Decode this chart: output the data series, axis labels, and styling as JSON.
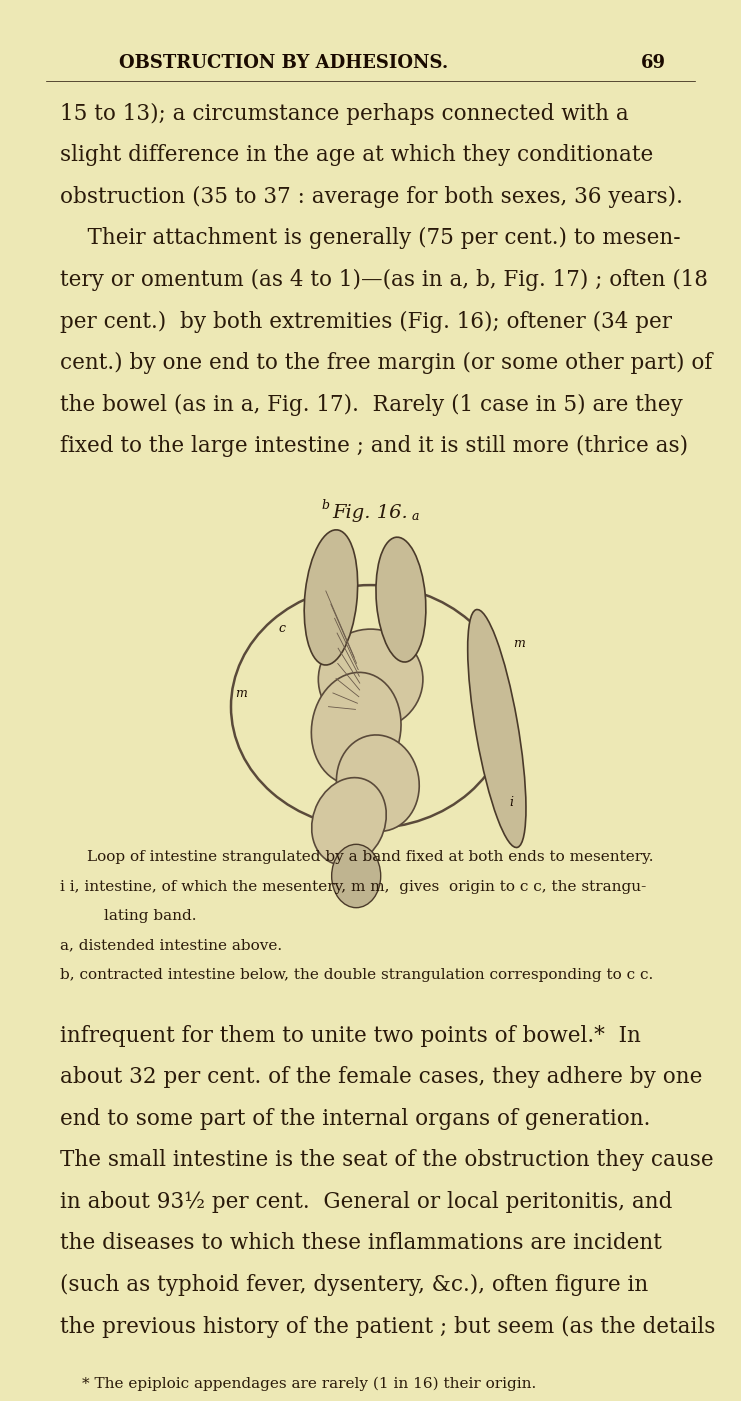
{
  "background_color": "#ede8b5",
  "header_text": "OBSTRUCTION BY ADHESIONS.",
  "page_number": "69",
  "fig_caption": "Fig. 16.",
  "caption_line1": "Loop of intestine strangulated by a band fixed at both ends to mesentery.",
  "caption_line2": "i i, intestine, of which the mesentery, m m,  gives  origin to c c, the strangu-",
  "caption_line3": "lating band.",
  "caption_line4": "a, distended intestine above.",
  "caption_line5": "b, contracted intestine below, the double strangulation corresponding to c c.",
  "footnote": "* The epiploic appendages are rarely (1 in 16) their origin.",
  "text_color": "#2a1a0a",
  "header_color": "#1a0a00",
  "font_size_header": 13,
  "font_size_body": 15.5,
  "font_size_caption_title": 13,
  "font_size_caption_body": 11,
  "font_size_footnote": 11,
  "body1_lines": [
    "15 to 13); a circumstance perhaps connected with a",
    "slight difference in the age at which they conditionate",
    "obstruction (35 to 37 : average for both sexes, 36 years).",
    "    Their attachment is generally (75 per cent.) to mesen-",
    "tery or omentum (as 4 to 1)—(as in a, b, Fig. 17) ; often (18",
    "per cent.)  by both extremities (Fig. 16); oftener (34 per",
    "cent.) by one end to the free margin (or some other part) of",
    "the bowel (as in a, Fig. 17).  Rarely (1 case in 5) are they",
    "fixed to the large intestine ; and it is still more (thrice as)"
  ],
  "body2_lines": [
    "infrequent for them to unite two points of bowel.*  In",
    "about 32 per cent. of the female cases, they adhere by one",
    "end to some part of the internal organs of generation.",
    "The small intestine is the seat of the obstruction they cause",
    "in about 93½ per cent.  General or local peritonitis, and",
    "the diseases to which these inflammations are incident",
    "(such as typhoid fever, dysentery, &c.), often figure in",
    "the previous history of the patient ; but seem (as the details"
  ]
}
